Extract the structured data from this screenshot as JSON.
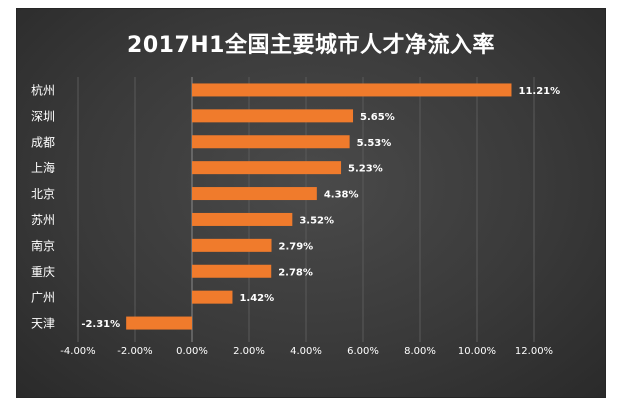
{
  "chart_data": {
    "type": "bar",
    "orientation": "horizontal",
    "title": "2017H1全国主要城市人才净流入率",
    "categories": [
      "杭州",
      "深圳",
      "成都",
      "上海",
      "北京",
      "苏州",
      "南京",
      "重庆",
      "广州",
      "天津"
    ],
    "values": [
      11.21,
      5.65,
      5.53,
      5.23,
      4.38,
      3.52,
      2.79,
      2.78,
      1.42,
      -2.31
    ],
    "value_labels": [
      "11.21%",
      "5.65%",
      "5.53%",
      "5.23%",
      "4.38%",
      "3.52%",
      "2.79%",
      "2.78%",
      "1.42%",
      "-2.31%"
    ],
    "xlim": [
      -4,
      12
    ],
    "xticks": [
      -4,
      -2,
      0,
      2,
      4,
      6,
      8,
      10,
      12
    ],
    "xtick_labels": [
      "-4.00%",
      "-2.00%",
      "0.00%",
      "2.00%",
      "4.00%",
      "6.00%",
      "8.00%",
      "10.00%",
      "12.00%"
    ],
    "xlabel": "",
    "ylabel": "",
    "grid": "vertical",
    "legend": "none",
    "colors": {
      "bar": "#f07b2c",
      "background": "#3d3d3d",
      "text": "#ffffff",
      "grid": "#5a5a5a"
    }
  }
}
